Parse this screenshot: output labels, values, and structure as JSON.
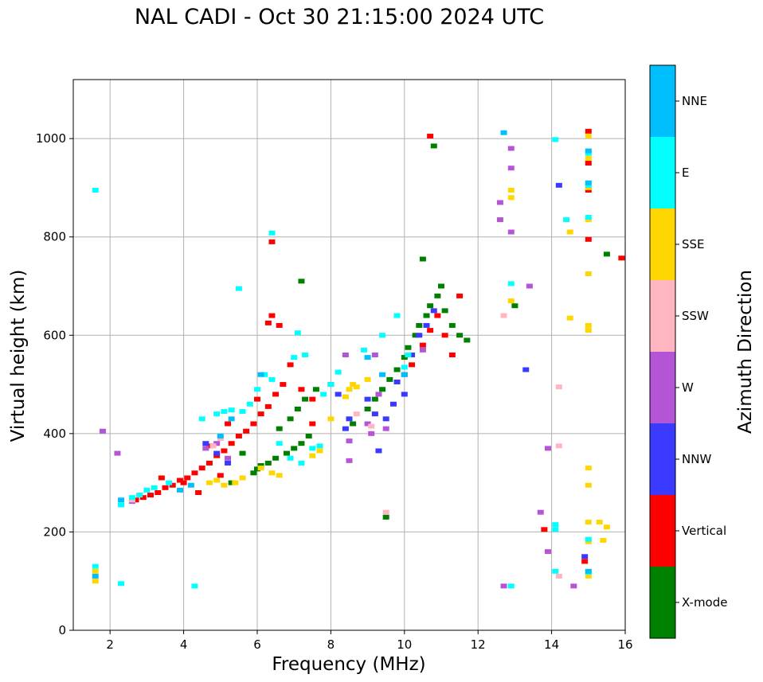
{
  "chart_data": {
    "type": "scatter",
    "title": "NAL CADI - Oct 30 21:15:00 2024 UTC",
    "xlabel": "Frequency (MHz)",
    "ylabel": "Virtual height (km)",
    "xlim": [
      1,
      16
    ],
    "ylim": [
      0,
      1120
    ],
    "xticks": [
      2,
      4,
      6,
      8,
      10,
      12,
      14,
      16
    ],
    "yticks": [
      0,
      200,
      400,
      600,
      800,
      1000
    ],
    "grid": true,
    "colorbar": {
      "label": "Azimuth Direction",
      "categories": [
        {
          "name": "X-mode",
          "color": "#008000"
        },
        {
          "name": "Vertical",
          "color": "#ff0000"
        },
        {
          "name": "NNW",
          "color": "#3a3aff"
        },
        {
          "name": "W",
          "color": "#b455d5"
        },
        {
          "name": "SSW",
          "color": "#ffb6c1"
        },
        {
          "name": "SSE",
          "color": "#ffd700"
        },
        {
          "name": "E",
          "color": "#00ffff"
        },
        {
          "name": "NNE",
          "color": "#00bfff"
        }
      ]
    },
    "series": [
      {
        "name": "X-mode",
        "points": [
          [
            5.9,
            320
          ],
          [
            6.0,
            328
          ],
          [
            6.1,
            335
          ],
          [
            6.3,
            340
          ],
          [
            6.5,
            350
          ],
          [
            6.8,
            360
          ],
          [
            7.0,
            370
          ],
          [
            7.2,
            380
          ],
          [
            7.4,
            395
          ],
          [
            6.6,
            410
          ],
          [
            6.9,
            430
          ],
          [
            7.1,
            450
          ],
          [
            7.3,
            470
          ],
          [
            7.6,
            490
          ],
          [
            8.0,
            500
          ],
          [
            8.6,
            420
          ],
          [
            9.0,
            450
          ],
          [
            9.2,
            470
          ],
          [
            9.4,
            490
          ],
          [
            9.6,
            510
          ],
          [
            9.8,
            530
          ],
          [
            10.0,
            555
          ],
          [
            10.1,
            575
          ],
          [
            10.3,
            600
          ],
          [
            10.4,
            620
          ],
          [
            10.6,
            640
          ],
          [
            10.7,
            660
          ],
          [
            10.9,
            680
          ],
          [
            11.1,
            650
          ],
          [
            11.3,
            620
          ],
          [
            11.5,
            600
          ],
          [
            11.7,
            590
          ],
          [
            10.5,
            755
          ],
          [
            10.8,
            985
          ],
          [
            13.0,
            660
          ],
          [
            15.5,
            765
          ],
          [
            9.5,
            230
          ],
          [
            5.3,
            300
          ],
          [
            5.6,
            360
          ],
          [
            7.2,
            710
          ],
          [
            11.0,
            700
          ]
        ]
      },
      {
        "name": "Vertical",
        "points": [
          [
            2.7,
            265
          ],
          [
            2.9,
            270
          ],
          [
            3.1,
            275
          ],
          [
            3.3,
            280
          ],
          [
            3.5,
            290
          ],
          [
            3.7,
            295
          ],
          [
            3.9,
            305
          ],
          [
            4.1,
            310
          ],
          [
            4.3,
            320
          ],
          [
            4.5,
            330
          ],
          [
            4.7,
            340
          ],
          [
            4.9,
            355
          ],
          [
            5.1,
            365
          ],
          [
            5.3,
            380
          ],
          [
            5.5,
            395
          ],
          [
            5.7,
            405
          ],
          [
            5.9,
            420
          ],
          [
            6.1,
            440
          ],
          [
            6.3,
            455
          ],
          [
            6.5,
            480
          ],
          [
            6.7,
            500
          ],
          [
            6.9,
            540
          ],
          [
            6.4,
            640
          ],
          [
            6.6,
            620
          ],
          [
            6.3,
            625
          ],
          [
            6.4,
            790
          ],
          [
            7.2,
            490
          ],
          [
            7.5,
            470
          ],
          [
            10.0,
            520
          ],
          [
            10.2,
            540
          ],
          [
            10.5,
            580
          ],
          [
            10.7,
            610
          ],
          [
            10.9,
            640
          ],
          [
            11.1,
            600
          ],
          [
            11.3,
            560
          ],
          [
            10.7,
            1005
          ],
          [
            13.8,
            205
          ],
          [
            14.9,
            140
          ],
          [
            15.0,
            1015
          ],
          [
            15.0,
            950
          ],
          [
            15.0,
            895
          ],
          [
            15.0,
            795
          ],
          [
            15.9,
            757
          ],
          [
            3.4,
            310
          ],
          [
            4.0,
            300
          ],
          [
            4.7,
            375
          ],
          [
            5.2,
            420
          ],
          [
            6.0,
            470
          ],
          [
            5.0,
            315
          ],
          [
            4.4,
            280
          ],
          [
            7.5,
            420
          ],
          [
            11.5,
            680
          ]
        ]
      },
      {
        "name": "NNW",
        "points": [
          [
            4.6,
            380
          ],
          [
            4.9,
            360
          ],
          [
            5.2,
            340
          ],
          [
            8.4,
            410
          ],
          [
            8.5,
            430
          ],
          [
            9.0,
            470
          ],
          [
            9.2,
            440
          ],
          [
            9.5,
            430
          ],
          [
            9.7,
            460
          ],
          [
            10.0,
            480
          ],
          [
            10.2,
            560
          ],
          [
            10.4,
            600
          ],
          [
            10.6,
            620
          ],
          [
            9.3,
            365
          ],
          [
            13.3,
            530
          ],
          [
            14.2,
            905
          ],
          [
            14.9,
            150
          ],
          [
            8.2,
            480
          ],
          [
            9.8,
            505
          ],
          [
            10.8,
            650
          ]
        ]
      },
      {
        "name": "W",
        "points": [
          [
            2.2,
            360
          ],
          [
            1.8,
            405
          ],
          [
            2.6,
            262
          ],
          [
            4.6,
            370
          ],
          [
            4.9,
            380
          ],
          [
            5.2,
            350
          ],
          [
            8.5,
            385
          ],
          [
            8.5,
            345
          ],
          [
            9.0,
            420
          ],
          [
            9.1,
            400
          ],
          [
            9.3,
            480
          ],
          [
            9.5,
            410
          ],
          [
            12.6,
            870
          ],
          [
            12.6,
            835
          ],
          [
            12.9,
            980
          ],
          [
            12.9,
            940
          ],
          [
            12.9,
            810
          ],
          [
            13.4,
            700
          ],
          [
            13.7,
            240
          ],
          [
            13.9,
            160
          ],
          [
            13.9,
            370
          ],
          [
            14.6,
            90
          ],
          [
            12.7,
            90
          ],
          [
            10.5,
            570
          ],
          [
            8.4,
            560
          ],
          [
            9.2,
            560
          ]
        ]
      },
      {
        "name": "SSW",
        "points": [
          [
            2.6,
            265
          ],
          [
            9.5,
            240
          ],
          [
            14.2,
            495
          ],
          [
            14.2,
            375
          ],
          [
            14.2,
            110
          ],
          [
            12.7,
            640
          ],
          [
            8.7,
            440
          ],
          [
            9.1,
            415
          ],
          [
            4.8,
            375
          ],
          [
            5.0,
            390
          ]
        ]
      },
      {
        "name": "SSE",
        "points": [
          [
            1.6,
            120
          ],
          [
            1.6,
            100
          ],
          [
            4.7,
            300
          ],
          [
            4.9,
            305
          ],
          [
            5.1,
            295
          ],
          [
            5.4,
            300
          ],
          [
            5.6,
            310
          ],
          [
            6.1,
            330
          ],
          [
            6.4,
            320
          ],
          [
            6.6,
            315
          ],
          [
            7.5,
            355
          ],
          [
            7.7,
            365
          ],
          [
            8.0,
            430
          ],
          [
            8.4,
            475
          ],
          [
            8.5,
            490
          ],
          [
            8.6,
            500
          ],
          [
            8.7,
            495
          ],
          [
            9.0,
            510
          ],
          [
            12.9,
            895
          ],
          [
            12.9,
            880
          ],
          [
            12.9,
            670
          ],
          [
            14.5,
            810
          ],
          [
            14.5,
            635
          ],
          [
            15.0,
            1005
          ],
          [
            15.0,
            960
          ],
          [
            15.0,
            900
          ],
          [
            15.0,
            835
          ],
          [
            15.0,
            725
          ],
          [
            15.0,
            620
          ],
          [
            15.0,
            610
          ],
          [
            15.0,
            330
          ],
          [
            15.0,
            295
          ],
          [
            15.0,
            220
          ],
          [
            15.3,
            220
          ],
          [
            15.5,
            210
          ],
          [
            15.0,
            110
          ],
          [
            15.4,
            183
          ],
          [
            15.0,
            180
          ]
        ]
      },
      {
        "name": "E",
        "points": [
          [
            2.3,
            255
          ],
          [
            2.6,
            270
          ],
          [
            2.8,
            275
          ],
          [
            3.0,
            285
          ],
          [
            3.2,
            290
          ],
          [
            4.9,
            440
          ],
          [
            5.1,
            445
          ],
          [
            5.3,
            448
          ],
          [
            5.6,
            445
          ],
          [
            5.8,
            460
          ],
          [
            6.0,
            490
          ],
          [
            6.2,
            520
          ],
          [
            6.4,
            510
          ],
          [
            6.6,
            380
          ],
          [
            6.9,
            350
          ],
          [
            7.2,
            340
          ],
          [
            7.5,
            370
          ],
          [
            7.7,
            375
          ],
          [
            7.8,
            480
          ],
          [
            8.0,
            500
          ],
          [
            8.2,
            525
          ],
          [
            9.4,
            600
          ],
          [
            10.0,
            535
          ],
          [
            10.1,
            560
          ],
          [
            6.4,
            808
          ],
          [
            5.5,
            695
          ],
          [
            1.6,
            895
          ],
          [
            2.3,
            95
          ],
          [
            4.3,
            90
          ],
          [
            1.6,
            130
          ],
          [
            12.9,
            705
          ],
          [
            12.9,
            90
          ],
          [
            14.1,
            998
          ],
          [
            14.1,
            215
          ],
          [
            14.1,
            205
          ],
          [
            14.1,
            120
          ],
          [
            14.4,
            835
          ],
          [
            15.0,
            970
          ],
          [
            15.0,
            905
          ],
          [
            15.0,
            840
          ],
          [
            15.0,
            118
          ],
          [
            15.0,
            185
          ],
          [
            8.9,
            570
          ],
          [
            9.8,
            640
          ],
          [
            7.0,
            555
          ],
          [
            4.5,
            430
          ],
          [
            3.6,
            300
          ],
          [
            7.1,
            605
          ],
          [
            7.3,
            560
          ]
        ]
      },
      {
        "name": "NNE",
        "points": [
          [
            1.6,
            110
          ],
          [
            2.3,
            265
          ],
          [
            5.0,
            395
          ],
          [
            5.3,
            430
          ],
          [
            6.1,
            520
          ],
          [
            9.0,
            555
          ],
          [
            9.4,
            520
          ],
          [
            10.0,
            520
          ],
          [
            12.7,
            1012
          ],
          [
            15.0,
            975
          ],
          [
            15.0,
            910
          ],
          [
            15.0,
            120
          ],
          [
            3.9,
            285
          ],
          [
            4.2,
            295
          ]
        ]
      }
    ]
  }
}
